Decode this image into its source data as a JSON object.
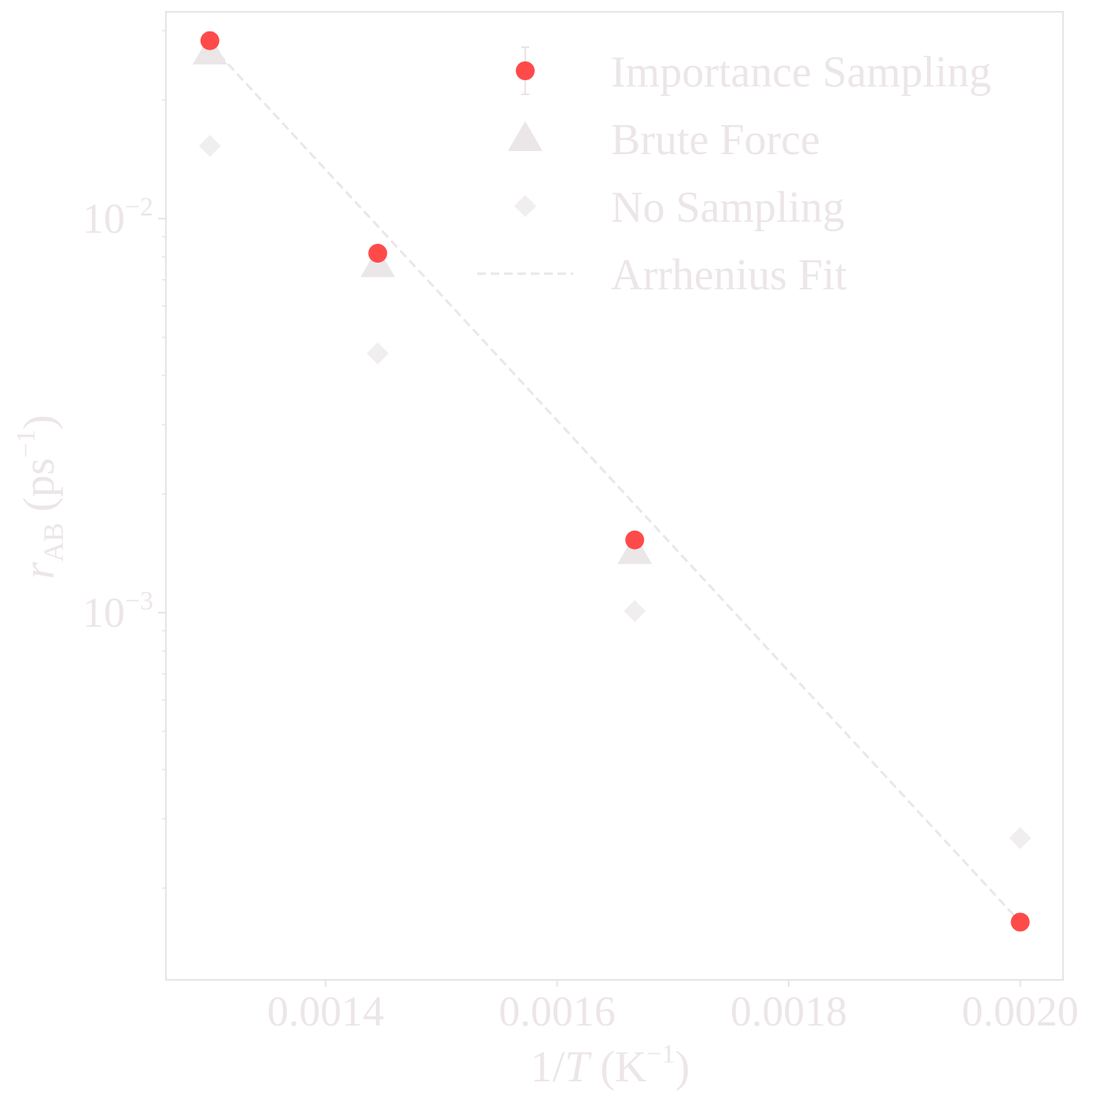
{
  "chart_data": {
    "type": "scatter",
    "title": "",
    "x_scale": "linear",
    "y_scale": "log",
    "grid": false,
    "legend_position": "top-right",
    "xlim": [
      0.001262,
      0.002037
    ],
    "ylim": [
      0.000117,
      0.0335
    ],
    "x_ticks": [
      {
        "value": 0.0014,
        "label": "0.0014"
      },
      {
        "value": 0.0016,
        "label": "0.0016"
      },
      {
        "value": 0.0018,
        "label": "0.0018"
      },
      {
        "value": 0.002,
        "label": "0.0020"
      }
    ],
    "y_major_ticks": [
      {
        "value": 0.01,
        "base": "10",
        "exponent": "−2"
      },
      {
        "value": 0.001,
        "base": "10",
        "exponent": "−3"
      }
    ],
    "y_minor_ticks": [
      0.0002,
      0.0003,
      0.0004,
      0.0005,
      0.0006,
      0.0007,
      0.0008,
      0.0009,
      0.002,
      0.003,
      0.004,
      0.005,
      0.006,
      0.007,
      0.008,
      0.009,
      0.02,
      0.03
    ],
    "xlabel": {
      "pre": "1/",
      "var": "T",
      "post": " (K",
      "sup": "−1",
      "close": ")"
    },
    "ylabel": {
      "var": "r",
      "sub": "AB",
      "post": " (ps",
      "sup": "−1",
      "close": ")"
    },
    "series": [
      {
        "name": "Importance Sampling",
        "marker": "circle",
        "color": "#ff4a4a",
        "error_bars": true,
        "x": [
          0.0013,
          0.001445,
          0.001667,
          0.002
        ],
        "y": [
          0.0283,
          0.00817,
          0.00153,
          0.000164
        ],
        "err": [
          0.0015,
          0.0004,
          6e-05,
          8e-06
        ]
      },
      {
        "name": "Brute Force",
        "marker": "triangle",
        "color": "#ebe6e8",
        "x": [
          0.0013,
          0.001445,
          0.001667
        ],
        "y": [
          0.0265,
          0.00765,
          0.00143
        ]
      },
      {
        "name": "No Sampling",
        "marker": "diamond",
        "color": "#f1eeef",
        "x": [
          0.0013,
          0.001445,
          0.001667,
          0.002
        ],
        "y": [
          0.0153,
          0.00455,
          0.00101,
          0.000268
        ]
      },
      {
        "name": "Arrhenius Fit",
        "marker": "dashed-line",
        "color": "#ebe6e8",
        "x": [
          0.0013,
          0.002
        ],
        "y": [
          0.0277,
          0.000164
        ]
      }
    ]
  },
  "colors": {
    "text": "#ece6e8",
    "frame": "#e9e3e5",
    "importance": "#ff4a4a",
    "brute": "#ebe6e8",
    "nosampling": "#f1eeef",
    "fit": "#ebe6e8"
  }
}
